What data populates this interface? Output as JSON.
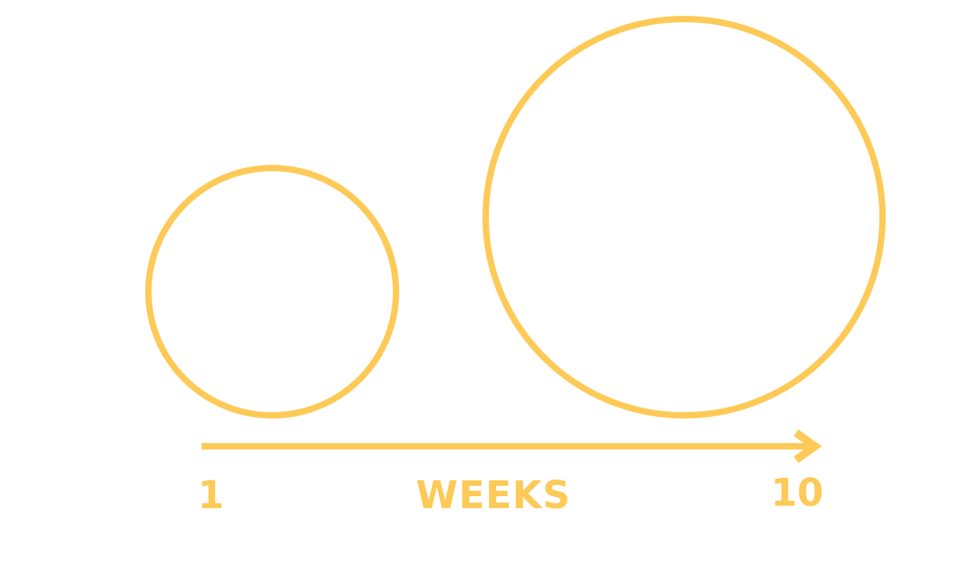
{
  "diagram": {
    "accent_color": "#FDCA57",
    "axis_label": "WEEKS",
    "start_label": "1",
    "end_label": "10",
    "shapes": [
      "small-circle",
      "large-circle",
      "arrow-right"
    ]
  }
}
